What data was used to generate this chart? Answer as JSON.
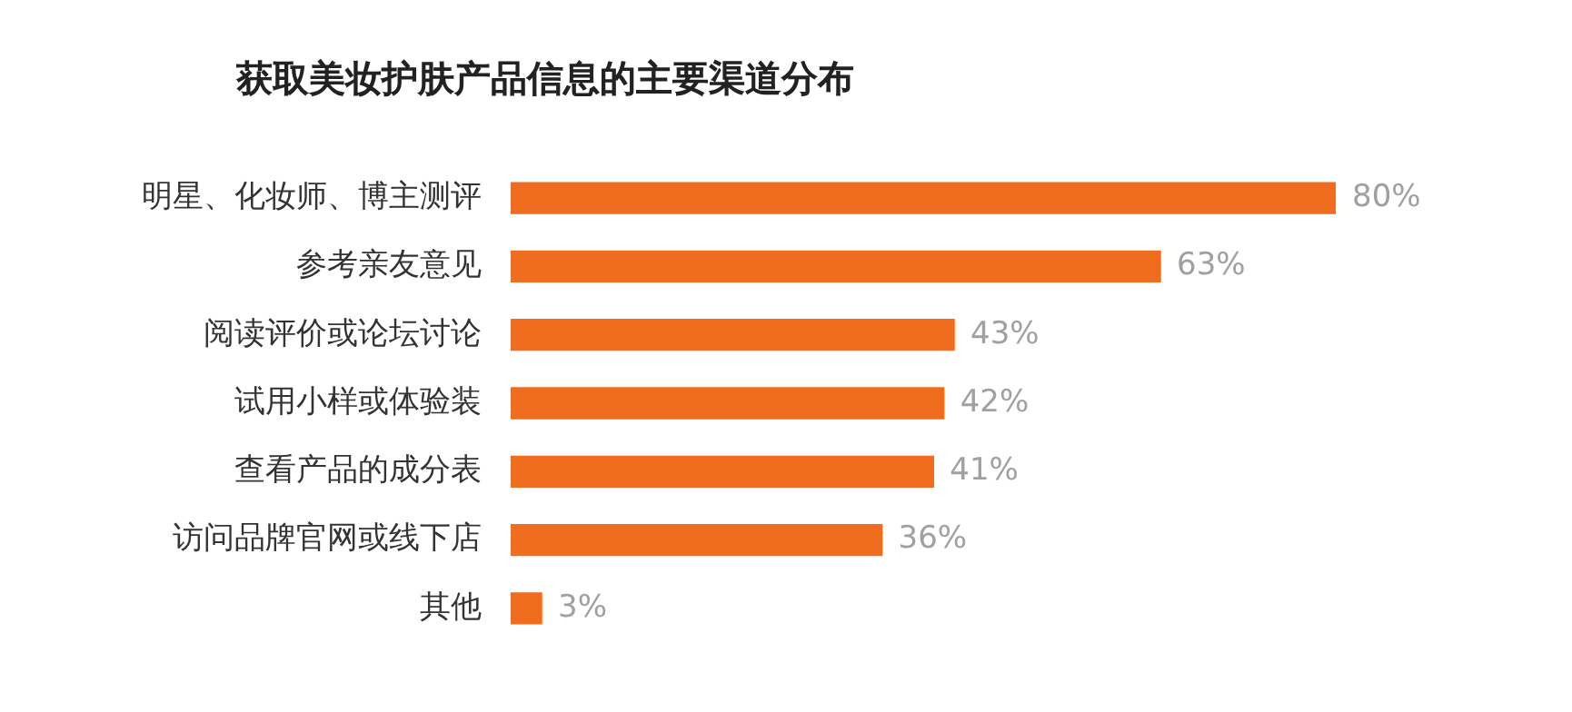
{
  "chart_data": {
    "type": "bar",
    "orientation": "horizontal",
    "title": "获取美妆护肤产品信息的主要渠道分布",
    "categories": [
      "明星、化妆师、博主测评",
      "参考亲友意见",
      "阅读评价或论坛讨论",
      "试用小样或体验装",
      "查看产品的成分表",
      "访问品牌官网或线下店",
      "其他"
    ],
    "values": [
      80,
      63,
      43,
      42,
      41,
      36,
      3
    ],
    "value_labels": [
      "80%",
      "63%",
      "43%",
      "42%",
      "41%",
      "36%",
      "3%"
    ],
    "color": "#f06c1e",
    "tick_labels": "y"
  }
}
